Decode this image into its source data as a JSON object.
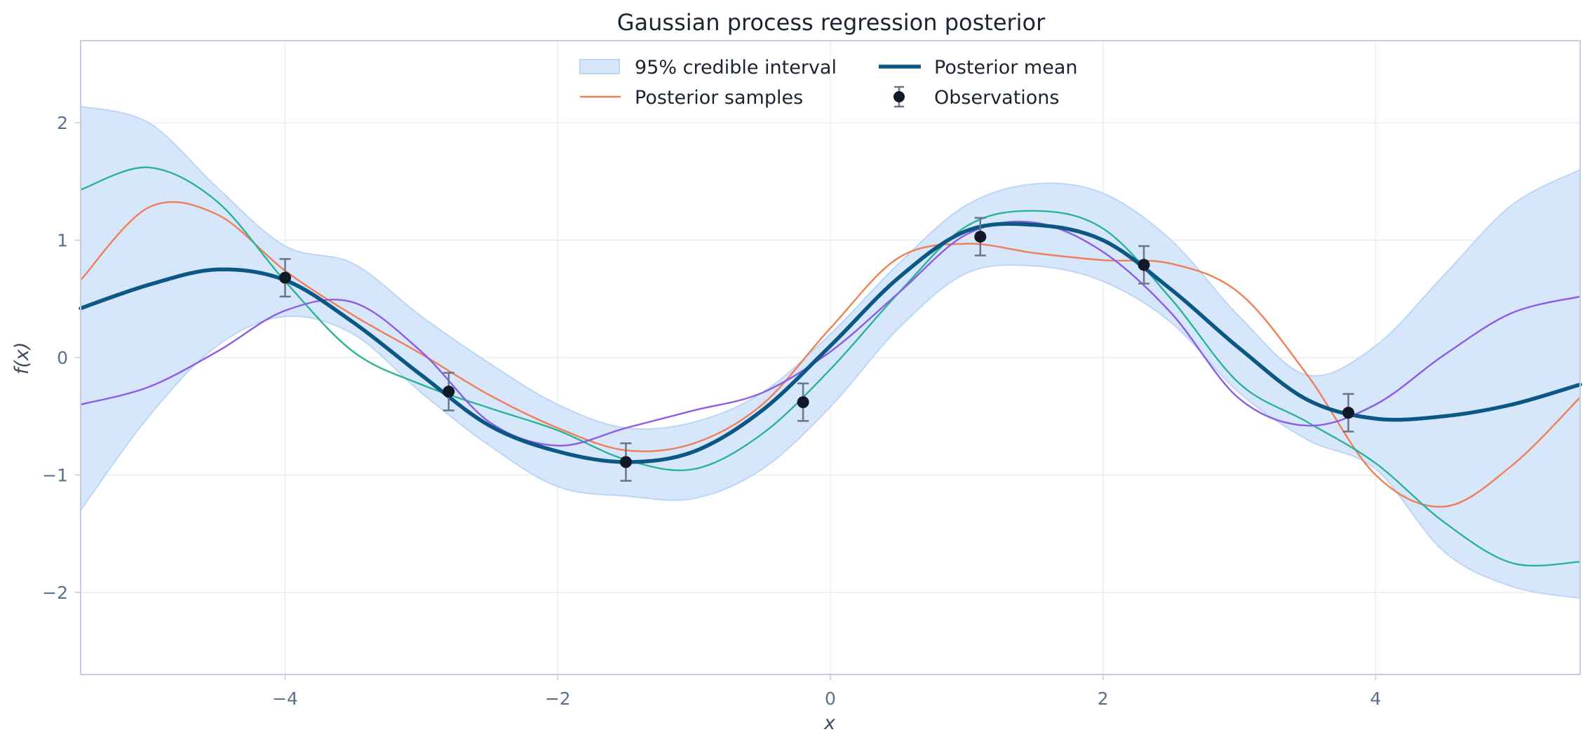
{
  "chart_data": {
    "type": "line",
    "title": "Gaussian process regression posterior",
    "xlabel": "x",
    "ylabel": "f(x)",
    "xlim": [
      -5.5,
      5.5
    ],
    "ylim": [
      -2.7,
      2.7
    ],
    "xticks": [
      -4,
      -2,
      0,
      2,
      4
    ],
    "yticks": [
      -2,
      -1,
      0,
      1,
      2
    ],
    "xtick_labels": [
      "−4",
      "−2",
      "0",
      "2",
      "4"
    ],
    "ytick_labels": [
      "−2",
      "−1",
      "0",
      "1",
      "2"
    ],
    "grid": true,
    "legend": {
      "placement": "top-center",
      "columns": 2,
      "entries": [
        "95% credible interval",
        "Posterior mean",
        "Posterior samples",
        "Observations"
      ]
    },
    "x": [
      -5.5,
      -5.0,
      -4.5,
      -4.0,
      -3.5,
      -3.0,
      -2.5,
      -2.0,
      -1.5,
      -1.0,
      -0.5,
      0.0,
      0.5,
      1.0,
      1.5,
      2.0,
      2.5,
      3.0,
      3.5,
      4.0,
      4.5,
      5.0,
      5.5
    ],
    "interval_upper": [
      2.14,
      2.0,
      1.45,
      0.95,
      0.8,
      0.35,
      -0.05,
      -0.4,
      -0.6,
      -0.55,
      -0.3,
      0.2,
      0.8,
      1.3,
      1.48,
      1.4,
      1.0,
      0.35,
      -0.15,
      0.1,
      0.7,
      1.3,
      1.6
    ],
    "interval_lower": [
      -1.3,
      -0.5,
      0.1,
      0.35,
      0.2,
      -0.3,
      -0.75,
      -1.1,
      -1.18,
      -1.2,
      -0.95,
      -0.42,
      0.25,
      0.72,
      0.78,
      0.65,
      0.3,
      -0.3,
      -0.7,
      -0.95,
      -1.65,
      -1.95,
      -2.05
    ],
    "series": [
      {
        "name": "Posterior mean",
        "color": "#0c5784",
        "values": [
          0.42,
          0.62,
          0.75,
          0.66,
          0.3,
          -0.15,
          -0.58,
          -0.8,
          -0.89,
          -0.8,
          -0.45,
          0.1,
          0.68,
          1.08,
          1.13,
          1.0,
          0.58,
          0.08,
          -0.36,
          -0.52,
          -0.5,
          -0.4,
          -0.23
        ]
      },
      {
        "color": "#f07f55",
        "values": [
          0.66,
          1.28,
          1.22,
          0.74,
          0.36,
          0.03,
          -0.32,
          -0.6,
          -0.79,
          -0.73,
          -0.4,
          0.25,
          0.85,
          0.97,
          0.89,
          0.83,
          0.8,
          0.55,
          -0.15,
          -1.0,
          -1.27,
          -0.92,
          -0.34
        ]
      },
      {
        "color": "#2bb494",
        "values": [
          1.43,
          1.62,
          1.33,
          0.65,
          0.05,
          -0.23,
          -0.43,
          -0.62,
          -0.87,
          -0.95,
          -0.65,
          -0.1,
          0.55,
          1.12,
          1.25,
          1.1,
          0.5,
          -0.22,
          -0.55,
          -0.9,
          -1.4,
          -1.75,
          -1.74
        ]
      },
      {
        "color": "#8c5ce6",
        "values": [
          -0.4,
          -0.25,
          0.05,
          0.4,
          0.47,
          0.05,
          -0.55,
          -0.75,
          -0.6,
          -0.45,
          -0.3,
          0.05,
          0.55,
          1.05,
          1.15,
          0.9,
          0.38,
          -0.35,
          -0.58,
          -0.4,
          0.02,
          0.38,
          0.52
        ]
      }
    ],
    "observations": {
      "name": "Observations",
      "x": [
        -4.0,
        -2.8,
        -1.5,
        -0.2,
        1.1,
        2.3,
        3.8
      ],
      "y": [
        0.68,
        -0.29,
        -0.89,
        -0.38,
        1.03,
        0.79,
        -0.47
      ],
      "error": [
        0.16,
        0.16,
        0.16,
        0.16,
        0.16,
        0.16,
        0.16
      ]
    },
    "colors": {
      "band_fill": "#d6e6fb",
      "band_edge": "#bdd6f6",
      "observation": "#111827",
      "error_bar": "#6b7585",
      "grid": "#e9edf2",
      "frame": "#c3cde0"
    }
  }
}
